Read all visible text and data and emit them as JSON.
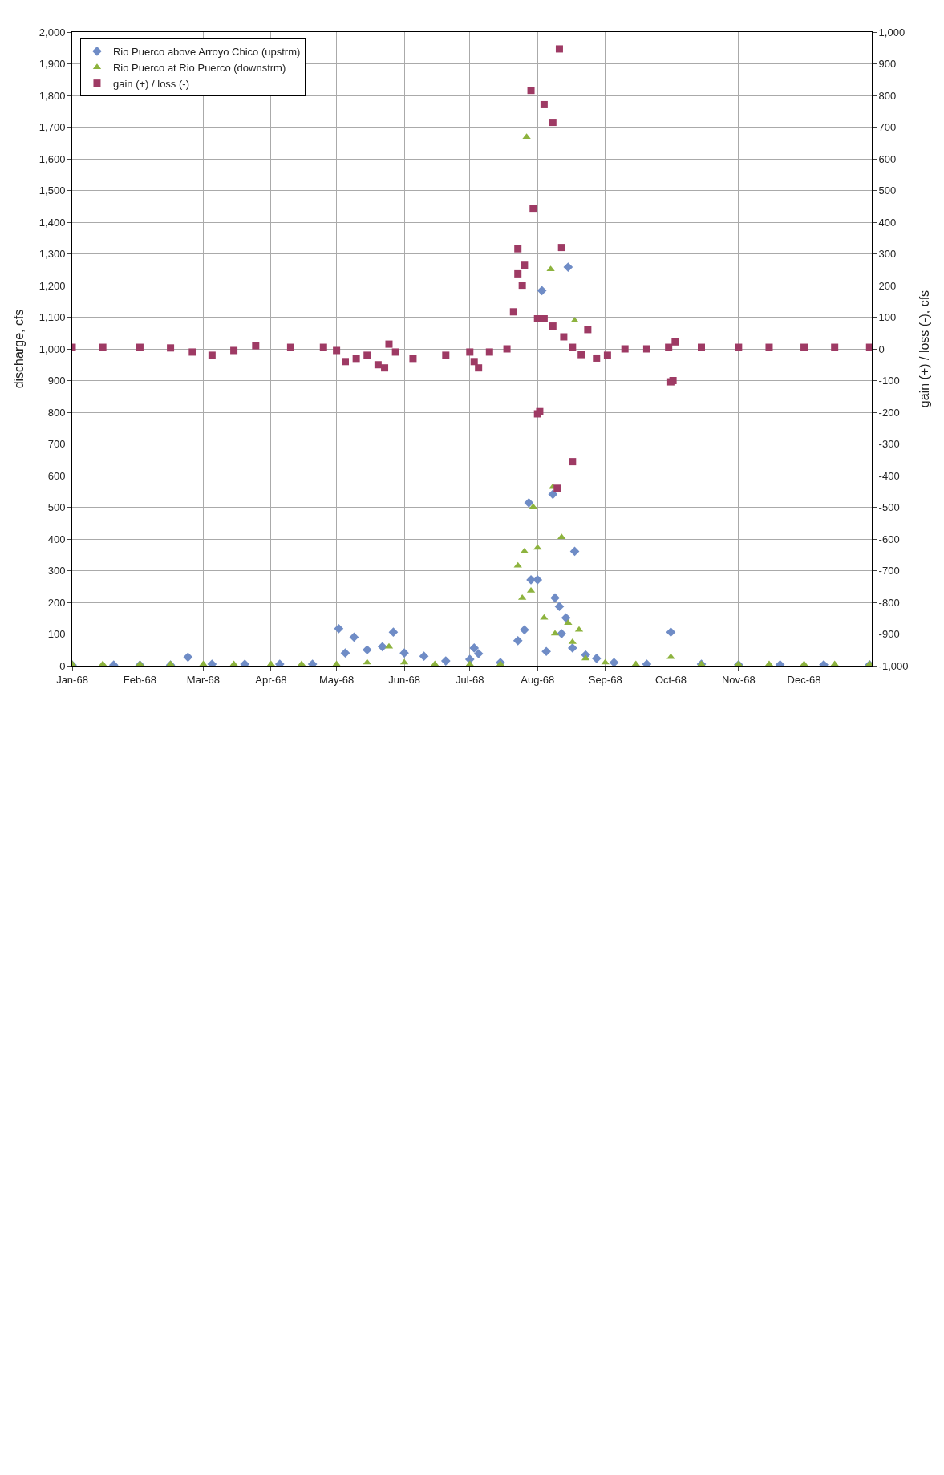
{
  "chart_data": {
    "type": "scatter",
    "xlabel": null,
    "ylabel": "discharge, cfs",
    "y2label": "gain (+) / loss (-), cfs",
    "xlim": [
      "1968-01-01",
      "1969-01-01"
    ],
    "xticks": [
      {
        "value": "1968-01-01",
        "label": "Jan-68"
      },
      {
        "value": "1968-02-01",
        "label": "Feb-68"
      },
      {
        "value": "1968-03-01",
        "label": "Mar-68"
      },
      {
        "value": "1968-04-01",
        "label": "Apr-68"
      },
      {
        "value": "1968-05-01",
        "label": "May-68"
      },
      {
        "value": "1968-06-01",
        "label": "Jun-68"
      },
      {
        "value": "1968-07-01",
        "label": "Jul-68"
      },
      {
        "value": "1968-08-01",
        "label": "Aug-68"
      },
      {
        "value": "1968-09-01",
        "label": "Sep-68"
      },
      {
        "value": "1968-10-01",
        "label": "Oct-68"
      },
      {
        "value": "1968-11-01",
        "label": "Nov-68"
      },
      {
        "value": "1968-12-01",
        "label": "Dec-68"
      }
    ],
    "ylim": [
      0,
      2000
    ],
    "yticks": [
      0,
      100,
      200,
      300,
      400,
      500,
      600,
      700,
      800,
      900,
      {
        "value": 1000,
        "label": "1,000"
      },
      {
        "value": 1100,
        "label": "1,100"
      },
      {
        "value": 1200,
        "label": "1,200"
      },
      {
        "value": 1300,
        "label": "1,300"
      },
      {
        "value": 1400,
        "label": "1,400"
      },
      {
        "value": 1500,
        "label": "1,500"
      },
      {
        "value": 1600,
        "label": "1,600"
      },
      {
        "value": 1700,
        "label": "1,700"
      },
      {
        "value": 1800,
        "label": "1,800"
      },
      {
        "value": 1900,
        "label": "1,900"
      },
      {
        "value": 2000,
        "label": "2,000"
      }
    ],
    "y2lim": [
      -1000,
      1000
    ],
    "y2ticks": [
      {
        "value": -1000,
        "label": "-1,000"
      },
      -900,
      -800,
      -700,
      -600,
      -500,
      -400,
      -300,
      -200,
      -100,
      0,
      100,
      200,
      300,
      400,
      500,
      600,
      700,
      800,
      900,
      {
        "value": 1000,
        "label": "1,000"
      }
    ],
    "grid": true,
    "legend": "top left",
    "series": [
      {
        "name": "Rio Puerco above Arroyo Chico (upstrm)",
        "color": "#6f8cc6",
        "marker": "diamond",
        "x": [
          "1968-01-01",
          "1968-01-20",
          "1968-02-01",
          "1968-02-15",
          "1968-02-23",
          "1968-03-05",
          "1968-03-20",
          "1968-04-05",
          "1968-04-20",
          "1968-05-02",
          "1968-05-05",
          "1968-05-09",
          "1968-05-15",
          "1968-05-22",
          "1968-05-27",
          "1968-06-01",
          "1968-06-10",
          "1968-06-20",
          "1968-07-01",
          "1968-07-03",
          "1968-07-05",
          "1968-07-15",
          "1968-07-23",
          "1968-07-26",
          "1968-07-28",
          "1968-07-29",
          "1968-08-01",
          "1968-08-03",
          "1968-08-05",
          "1968-08-08",
          "1968-08-09",
          "1968-08-11",
          "1968-08-12",
          "1968-08-14",
          "1968-08-15",
          "1968-08-17",
          "1968-08-18",
          "1968-08-23",
          "1968-08-28",
          "1968-09-05",
          "1968-09-20",
          "1968-10-01",
          "1968-10-15",
          "1968-11-01",
          "1968-11-20",
          "1968-12-10",
          "1968-12-31"
        ],
        "values": [
          2,
          2,
          2,
          2,
          27,
          5,
          5,
          5,
          5,
          117,
          40,
          90,
          50,
          60,
          106,
          40,
          30,
          15,
          20,
          56,
          38,
          10,
          79,
          113,
          514,
          271,
          271,
          1184,
          45,
          541,
          214,
          187,
          101,
          151,
          1258,
          56,
          361,
          34,
          23,
          10,
          5,
          106,
          5,
          3,
          3,
          3,
          3
        ]
      },
      {
        "name": "Rio Puerco at Rio Puerco (downstrm)",
        "color": "#8db33e",
        "marker": "triangle",
        "x": [
          "1968-01-01",
          "1968-01-15",
          "1968-02-01",
          "1968-02-15",
          "1968-03-01",
          "1968-03-15",
          "1968-04-01",
          "1968-04-15",
          "1968-05-01",
          "1968-05-15",
          "1968-05-25",
          "1968-06-01",
          "1968-06-15",
          "1968-07-01",
          "1968-07-15",
          "1968-07-23",
          "1968-07-25",
          "1968-07-26",
          "1968-07-27",
          "1968-07-29",
          "1968-07-30",
          "1968-08-01",
          "1968-08-04",
          "1968-08-07",
          "1968-08-09",
          "1968-08-08",
          "1968-08-12",
          "1968-08-15",
          "1968-08-17",
          "1968-08-18",
          "1968-08-20",
          "1968-08-23",
          "1968-09-01",
          "1968-09-15",
          "1968-10-01",
          "1968-10-15",
          "1968-11-01",
          "1968-11-15",
          "1968-12-01",
          "1968-12-15",
          "1968-12-31"
        ],
        "values": [
          5,
          5,
          5,
          5,
          5,
          5,
          5,
          5,
          5,
          10,
          60,
          10,
          5,
          5,
          5,
          316,
          214,
          361,
          1669,
          237,
          501,
          372,
          151,
          1251,
          101,
          564,
          406,
          135,
          75,
          1089,
          113,
          23,
          10,
          5,
          27,
          5,
          5,
          5,
          5,
          5,
          5
        ]
      },
      {
        "name": "gain (+) / loss (-)",
        "color": "#9e3a64",
        "marker": "square",
        "axis": "y2",
        "x": [
          "1968-01-01",
          "1968-01-15",
          "1968-02-01",
          "1968-02-15",
          "1968-02-25",
          "1968-03-05",
          "1968-03-15",
          "1968-03-25",
          "1968-04-10",
          "1968-04-25",
          "1968-05-01",
          "1968-05-05",
          "1968-05-10",
          "1968-05-15",
          "1968-05-20",
          "1968-05-23",
          "1968-05-25",
          "1968-05-28",
          "1968-06-05",
          "1968-06-20",
          "1968-07-01",
          "1968-07-03",
          "1968-07-05",
          "1968-07-10",
          "1968-07-18",
          "1968-07-21",
          "1968-07-23",
          "1968-07-23",
          "1968-07-25",
          "1968-07-26",
          "1968-07-29",
          "1968-07-30",
          "1968-08-01",
          "1968-08-01",
          "1968-08-02",
          "1968-08-04",
          "1968-08-04",
          "1968-08-08",
          "1968-08-08",
          "1968-08-10",
          "1968-08-11",
          "1968-08-12",
          "1968-08-13",
          "1968-08-17",
          "1968-08-17",
          "1968-08-21",
          "1968-08-24",
          "1968-08-28",
          "1968-09-02",
          "1968-09-10",
          "1968-09-20",
          "1968-09-30",
          "1968-10-01",
          "1968-10-02",
          "1968-10-03",
          "1968-10-15",
          "1968-11-01",
          "1968-11-15",
          "1968-12-01",
          "1968-12-15",
          "1968-12-31"
        ],
        "values": [
          5,
          5,
          5,
          3,
          -10,
          -20,
          -5,
          10,
          5,
          5,
          -5,
          -40,
          -30,
          -20,
          -50,
          -60,
          15,
          -10,
          -30,
          -20,
          -10,
          -40,
          -60,
          -10,
          0,
          117,
          316,
          237,
          201,
          264,
          816,
          444,
          95,
          -205,
          -198,
          95,
          771,
          72,
          715,
          -440,
          947,
          320,
          38,
          5,
          -356,
          -18,
          61,
          -29,
          -20,
          0,
          0,
          5,
          -104,
          -100,
          22,
          5,
          5,
          5,
          5,
          5,
          5
        ]
      }
    ]
  }
}
